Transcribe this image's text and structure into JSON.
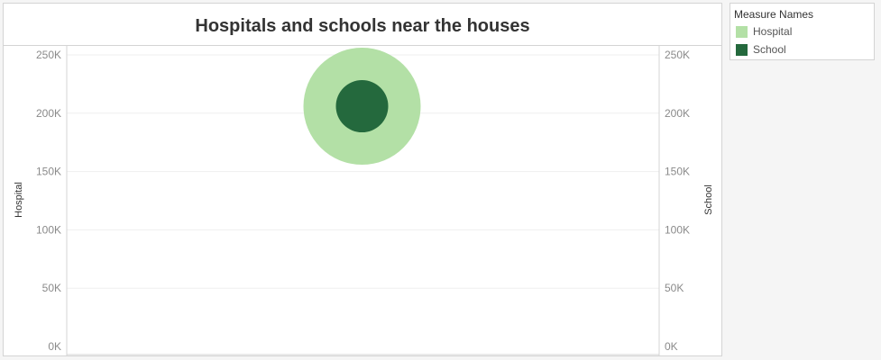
{
  "chart_data": {
    "type": "scatter",
    "title": "Hospitals and schools near the houses",
    "y_left_label": "Hospital",
    "y_right_label": "School",
    "ylim": [
      0,
      250000
    ],
    "yticks": [
      0,
      50000,
      100000,
      150000,
      200000,
      250000
    ],
    "ytick_labels": [
      "0K",
      "50K",
      "100K",
      "150K",
      "200K",
      "250K"
    ],
    "grid": true,
    "series": [
      {
        "name": "Hospital",
        "value": 206000,
        "size_rank": "large",
        "color": "#b3e0a6"
      },
      {
        "name": "School",
        "value": 206000,
        "size_rank": "small",
        "color": "#24693d"
      }
    ]
  },
  "legend": {
    "title": "Measure Names",
    "items": [
      {
        "label": "Hospital",
        "color": "#b3e0a6"
      },
      {
        "label": "School",
        "color": "#24693d"
      }
    ]
  }
}
